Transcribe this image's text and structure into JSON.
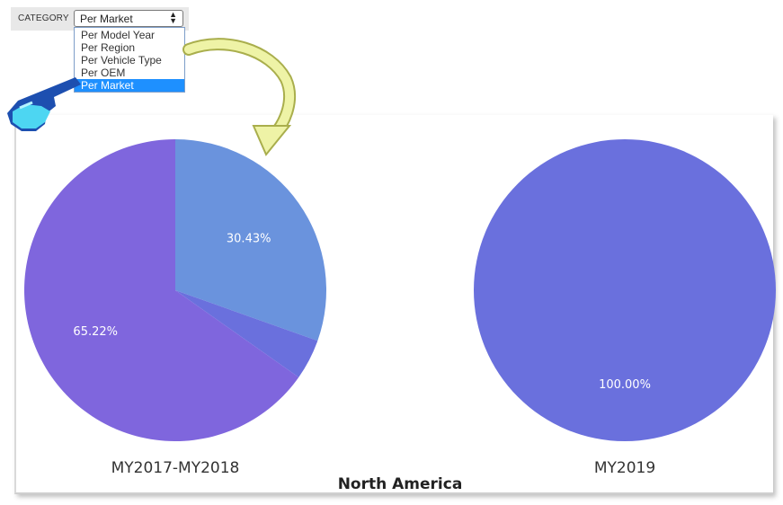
{
  "filter": {
    "label": "CATEGORY",
    "selected": "Per Market",
    "arrow_up": "▲",
    "arrow_down": "▼",
    "options": [
      "Per Model Year",
      "Per Region",
      "Per Vehicle Type",
      "Per OEM",
      "Per Market"
    ],
    "selected_index": 4
  },
  "annotations": {
    "pointer": "hand-pointer-icon",
    "curved_arrow": "curved-arrow-icon",
    "arrow_color": "#dce28a"
  },
  "chart_data": [
    {
      "type": "pie",
      "caption": "MY2017-MY2018",
      "slices": [
        {
          "value": 30.43,
          "label": "30.43%",
          "color": "#6a93dd"
        },
        {
          "value": 4.35,
          "label": "",
          "color": "#6a70dd"
        },
        {
          "value": 65.22,
          "label": "65.22%",
          "color": "#7f66dd"
        }
      ]
    },
    {
      "type": "pie",
      "caption": "MY2019",
      "slices": [
        {
          "value": 100.0,
          "label": "100.00%",
          "color": "#6a70dd"
        }
      ]
    }
  ],
  "group_title": "North America"
}
